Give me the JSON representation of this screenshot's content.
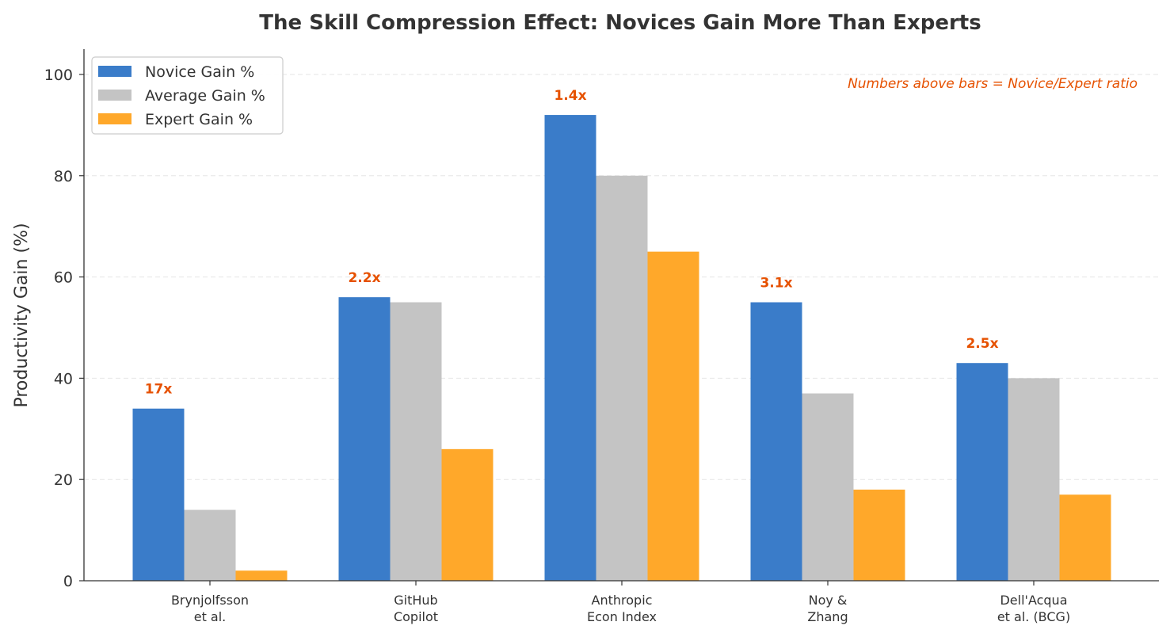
{
  "chart_data": {
    "type": "bar",
    "title": "The Skill Compression Effect: Novices Gain More Than Experts",
    "xlabel": "",
    "ylabel": "Productivity Gain (%)",
    "ylim": [
      0,
      105
    ],
    "yticks": [
      0,
      20,
      40,
      60,
      80,
      100
    ],
    "grid": "horizontal dashed",
    "legend_position": "top-left",
    "categories": [
      [
        "Brynjolfsson",
        "et al."
      ],
      [
        "GitHub",
        "Copilot"
      ],
      [
        "Anthropic",
        "Econ Index"
      ],
      [
        "Noy &",
        "Zhang"
      ],
      [
        "Dell'Acqua",
        "et al. (BCG)"
      ]
    ],
    "series": [
      {
        "name": "Novice Gain %",
        "color": "#3a7cc9",
        "values": [
          34,
          56,
          92,
          55,
          43
        ]
      },
      {
        "name": "Average Gain %",
        "color": "#c4c4c4",
        "values": [
          14,
          55,
          80,
          37,
          40
        ]
      },
      {
        "name": "Expert Gain %",
        "color": "#ffa82a",
        "values": [
          2,
          26,
          65,
          18,
          17
        ]
      }
    ],
    "ratio_labels": [
      "17x",
      "2.2x",
      "1.4x",
      "3.1x",
      "2.5x"
    ],
    "annotation": "Numbers above bars = Novice/Expert ratio",
    "annotation_color": "#e65100"
  }
}
